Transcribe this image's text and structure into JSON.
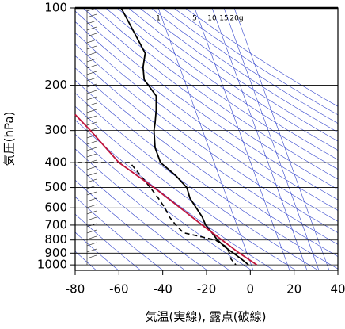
{
  "chart_data": {
    "type": "line",
    "xlabel": "気温(実線), 露点(破線)",
    "ylabel": "気圧(hPa)",
    "xlim": [
      -80,
      40
    ],
    "xticks": [
      -80,
      -60,
      -40,
      -20,
      0,
      20,
      40
    ],
    "ylim": [
      100,
      1050
    ],
    "yticks": [
      100,
      200,
      300,
      400,
      500,
      600,
      700,
      800,
      900,
      1000
    ],
    "ylog": true,
    "yinverted": true,
    "grid": true,
    "annotations": [
      "1",
      "5",
      "10",
      "15",
      "20g"
    ],
    "series": [
      {
        "color": "#000000",
        "dash": false,
        "x": [
          -59,
          -48,
          -49,
          -48.5,
          -43,
          -43,
          -43.5,
          -44,
          -43.5,
          -41,
          -34,
          -29,
          -27.6,
          -24.7,
          -22,
          -20.4,
          -17.5,
          -15,
          -11.7,
          -7.7,
          -4,
          -0.8
        ],
        "y": [
          100,
          150,
          170,
          190,
          220,
          250,
          280,
          300,
          350,
          400,
          450,
          500,
          550,
          600,
          650,
          700,
          750,
          800,
          850,
          900,
          950,
          1000
        ]
      },
      {
        "color": "#000000",
        "dash": true,
        "x": [
          -79,
          -55,
          -50,
          -45.7,
          -42,
          -39,
          -37,
          -34,
          -30.5,
          -16,
          -11,
          -9.5,
          -8.8,
          -6.6
        ],
        "y": [
          400,
          400,
          450,
          500,
          550,
          600,
          650,
          700,
          750,
          800,
          850,
          900,
          950,
          1000
        ]
      },
      {
        "color": "#c0143c",
        "dash": false,
        "x": [
          3,
          -5,
          -13,
          -22,
          -32,
          -44,
          -60,
          -73,
          -80
        ],
        "y": [
          1000,
          900,
          800,
          700,
          600,
          500,
          400,
          300,
          260
        ]
      }
    ]
  }
}
